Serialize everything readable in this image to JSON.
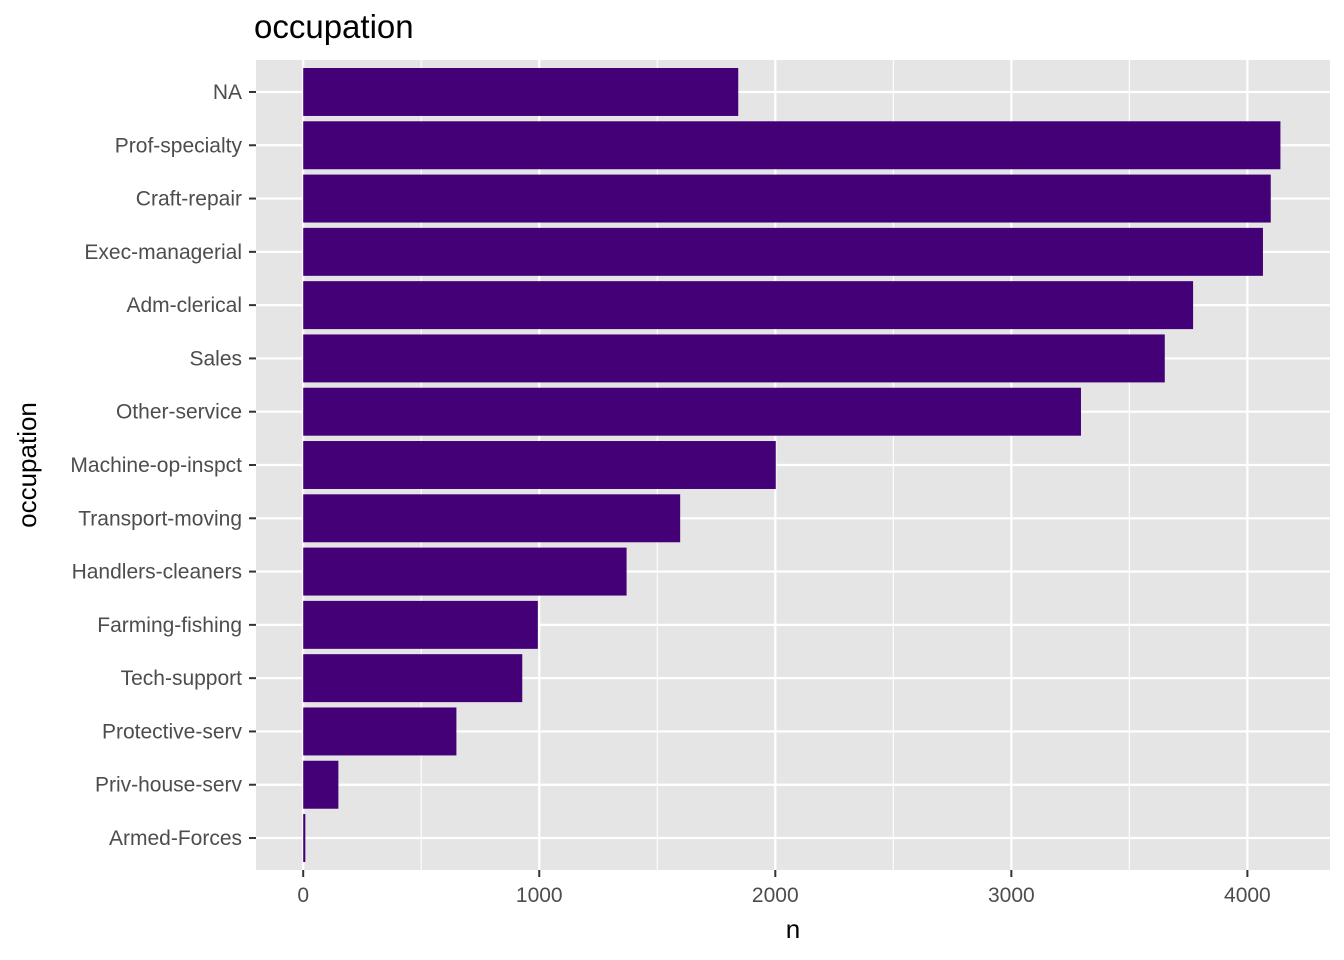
{
  "chart_data": {
    "type": "bar",
    "orientation": "horizontal",
    "title": "occupation",
    "xlabel": "n",
    "ylabel": "occupation",
    "categories": [
      "NA",
      "Prof-specialty",
      "Craft-repair",
      "Exec-managerial",
      "Adm-clerical",
      "Sales",
      "Other-service",
      "Machine-op-inspct",
      "Transport-moving",
      "Handlers-cleaners",
      "Farming-fishing",
      "Tech-support",
      "Protective-serv",
      "Priv-house-serv",
      "Armed-Forces"
    ],
    "values": [
      1843,
      4140,
      4099,
      4066,
      3770,
      3650,
      3295,
      2002,
      1597,
      1370,
      994,
      928,
      649,
      149,
      9
    ],
    "xlim": [
      -200,
      4350
    ],
    "xticks": [
      0,
      1000,
      2000,
      3000,
      4000
    ],
    "xtick_labels": [
      "0",
      "1000",
      "2000",
      "3000",
      "4000"
    ],
    "grid": true,
    "colors": {
      "bar": "#440077",
      "panel": "#e5e5e5",
      "grid": "#ffffff"
    }
  }
}
